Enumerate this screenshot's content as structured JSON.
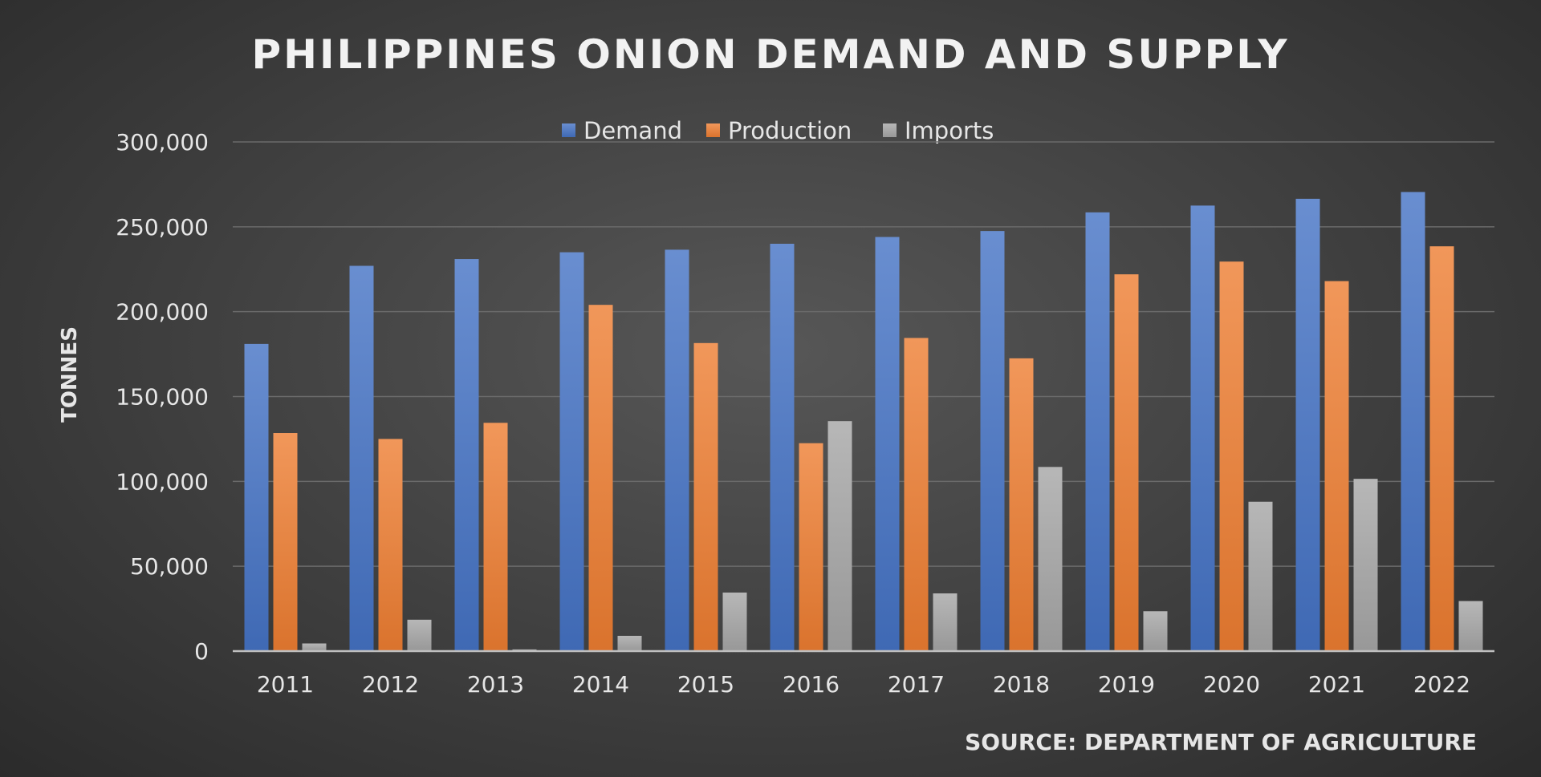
{
  "chart_data": {
    "type": "bar",
    "title": "PHILIPPINES ONION DEMAND AND SUPPLY",
    "ylabel": "TONNES",
    "xlabel": "",
    "source": "SOURCE: DEPARTMENT OF AGRICULTURE",
    "ylim": [
      0,
      300000
    ],
    "yticks": [
      {
        "value": 0,
        "label": "0"
      },
      {
        "value": 50000,
        "label": "50,000"
      },
      {
        "value": 100000,
        "label": "100,000"
      },
      {
        "value": 150000,
        "label": "150,000"
      },
      {
        "value": 200000,
        "label": "200,000"
      },
      {
        "value": 250000,
        "label": "250,000"
      },
      {
        "value": 300000,
        "label": "300,000"
      }
    ],
    "grid": true,
    "legend_position": "top-center",
    "categories": [
      "2011",
      "2012",
      "2013",
      "2014",
      "2015",
      "2016",
      "2017",
      "2018",
      "2019",
      "2020",
      "2021",
      "2022"
    ],
    "series": [
      {
        "name": "Demand",
        "color": "#4472c4",
        "values": [
          181000,
          227000,
          231000,
          235000,
          236500,
          240000,
          244000,
          247500,
          258500,
          262500,
          266500,
          270500
        ]
      },
      {
        "name": "Production",
        "color": "#ed7d31",
        "values": [
          128500,
          125000,
          134500,
          204000,
          181500,
          122500,
          184500,
          172500,
          222000,
          229500,
          218000,
          238500
        ]
      },
      {
        "name": "Imports",
        "color": "#a5a5a5",
        "values": [
          4500,
          18500,
          1000,
          9000,
          34500,
          135500,
          34000,
          108500,
          23500,
          88000,
          101500,
          29500
        ]
      }
    ]
  }
}
